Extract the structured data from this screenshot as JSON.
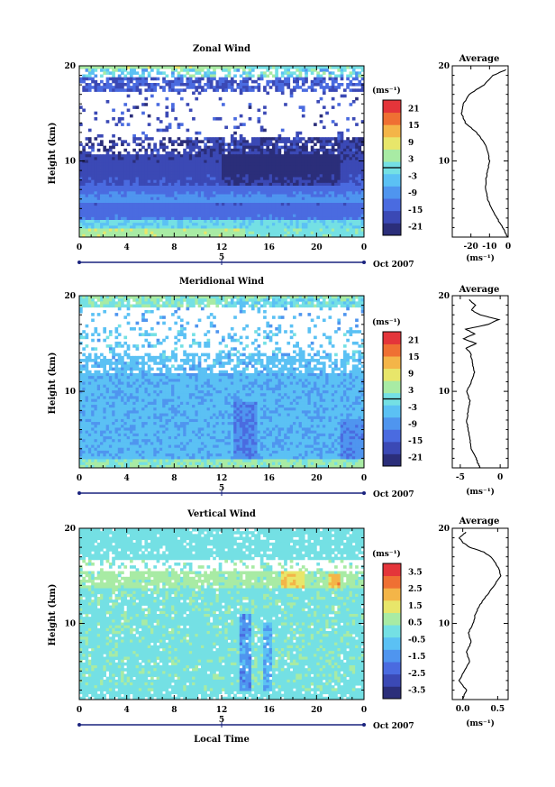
{
  "colors": {
    "palette": [
      "#2b2e7a",
      "#3b49b5",
      "#4a6be0",
      "#4f95ef",
      "#5bc1f4",
      "#74e0e4",
      "#a8eba4",
      "#e8e66a",
      "#f4b548",
      "#ef7033",
      "#e4353a"
    ],
    "contour": "#000000",
    "frame": "#000000",
    "background": "#ffffff"
  },
  "chart_data": [
    {
      "type": "heatmap",
      "title": "Zonal Wind",
      "xlabel": "",
      "ylabel": "Height (km)",
      "x_ticks": [
        "0",
        "4",
        "8",
        "12",
        "16",
        "20",
        "0"
      ],
      "y_ticks": [
        "20",
        "10"
      ],
      "xlim": [
        0,
        24
      ],
      "ylim": [
        2,
        20
      ],
      "date_marker": "5",
      "date_label": "Oct 2007",
      "colorbar": {
        "unit": "(ms⁻¹)",
        "min": -24,
        "max": 24,
        "ticks": [
          "21",
          "15",
          "9",
          "3",
          "-3",
          "-9",
          "-15",
          "-21"
        ]
      },
      "profile": {
        "title": "Average",
        "xlabel": "(ms⁻¹)",
        "x_ticks": [
          "-20",
          "-10",
          "0"
        ],
        "y_ticks": [
          "20",
          "10"
        ],
        "xlim": [
          -30,
          0
        ],
        "heights": [
          2,
          2.5,
          3,
          4,
          5,
          6,
          7,
          8,
          9,
          10,
          11,
          12,
          13,
          14,
          15,
          16,
          17,
          18,
          19,
          19.6
        ],
        "values": [
          -0.5,
          -1.5,
          -3,
          -6,
          -9,
          -11,
          -12,
          -12,
          -11,
          -10,
          -11,
          -13,
          -17,
          -23,
          -25,
          -24,
          -21,
          -13,
          -8,
          -1
        ]
      }
    },
    {
      "type": "heatmap",
      "title": "Meridional Wind",
      "xlabel": "",
      "ylabel": "Height (km)",
      "x_ticks": [
        "0",
        "4",
        "8",
        "12",
        "16",
        "20",
        "0"
      ],
      "y_ticks": [
        "20",
        "10"
      ],
      "xlim": [
        0,
        24
      ],
      "ylim": [
        2,
        20
      ],
      "date_marker": "5",
      "date_label": "Oct 2007",
      "colorbar": {
        "unit": "(ms⁻¹)",
        "min": -24,
        "max": 24,
        "ticks": [
          "21",
          "15",
          "9",
          "3",
          "-3",
          "-9",
          "-15",
          "-21"
        ]
      },
      "profile": {
        "title": "Average",
        "xlabel": "(ms⁻¹)",
        "x_ticks": [
          "-5",
          "0"
        ],
        "y_ticks": [
          "20",
          "10"
        ],
        "xlim": [
          -6,
          1
        ],
        "heights": [
          2,
          2.5,
          3,
          4,
          5,
          6,
          7,
          8,
          9,
          10,
          11,
          12,
          13,
          14,
          14.5,
          15,
          15.5,
          16,
          16.5,
          17,
          17.5,
          18,
          18.5,
          19,
          19.6
        ],
        "values": [
          -2.5,
          -2.8,
          -3,
          -3.6,
          -3.8,
          -4,
          -4.2,
          -4,
          -3.8,
          -4.2,
          -3.6,
          -3.2,
          -3.5,
          -3.7,
          -4.3,
          -3.0,
          -4.6,
          -3.2,
          -4.3,
          -1.5,
          -0.2,
          -2.5,
          -3.6,
          -3.1,
          -3.9
        ]
      }
    },
    {
      "type": "heatmap",
      "title": "Vertical Wind",
      "xlabel": "Local Time",
      "ylabel": "Height (km)",
      "x_ticks": [
        "0",
        "4",
        "8",
        "12",
        "16",
        "20",
        "0"
      ],
      "y_ticks": [
        "20",
        "10"
      ],
      "xlim": [
        0,
        24
      ],
      "ylim": [
        2,
        20
      ],
      "date_marker": "5",
      "date_label": "Oct 2007",
      "colorbar": {
        "unit": "(ms⁻¹)",
        "min": -4,
        "max": 4,
        "ticks": [
          "3.5",
          "2.5",
          "1.5",
          "0.5",
          "-0.5",
          "-1.5",
          "-2.5",
          "-3.5"
        ]
      },
      "profile": {
        "title": "Average",
        "xlabel": "(ms⁻¹)",
        "x_ticks": [
          "0.0",
          "0.5"
        ],
        "y_ticks": [
          "20",
          "10"
        ],
        "xlim": [
          -0.15,
          0.65
        ],
        "heights": [
          2,
          3,
          4,
          5,
          6,
          7,
          8,
          9,
          10,
          11,
          12,
          13,
          14,
          15,
          16,
          17,
          17.5,
          18,
          18.5,
          19,
          19.6
        ],
        "values": [
          0.0,
          0.05,
          -0.05,
          0.02,
          0.1,
          0.05,
          0.12,
          0.08,
          0.15,
          0.18,
          0.25,
          0.35,
          0.45,
          0.55,
          0.5,
          0.4,
          0.3,
          0.1,
          0.0,
          -0.05,
          0.05
        ]
      }
    }
  ]
}
